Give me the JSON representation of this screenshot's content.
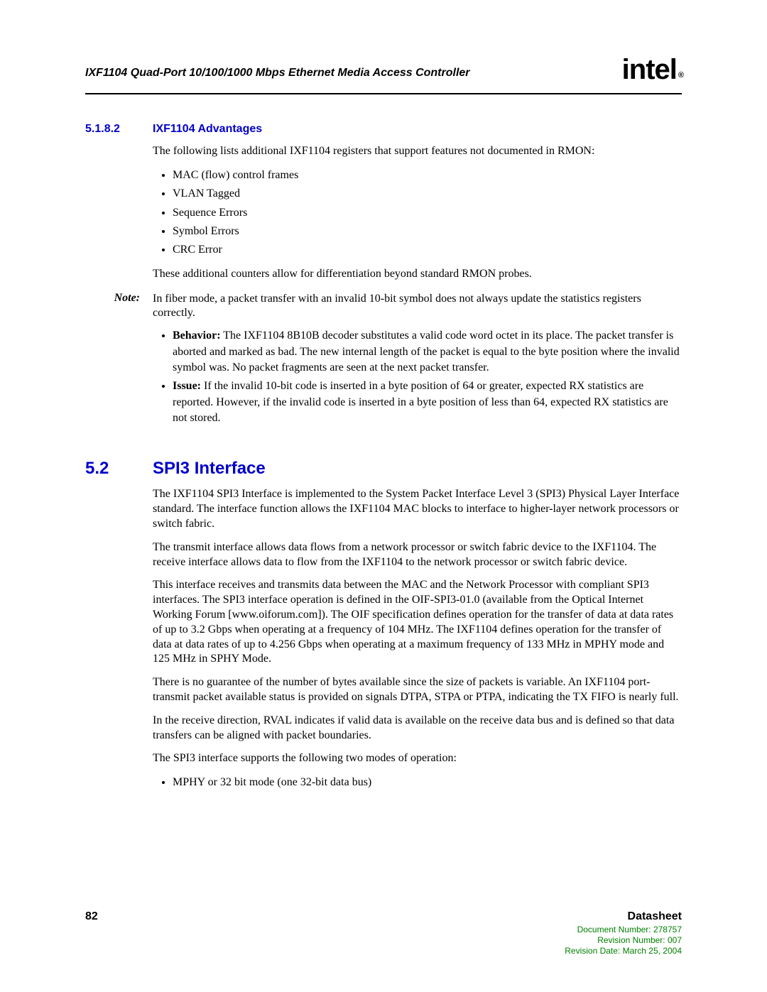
{
  "header": {
    "title": "IXF1104 Quad-Port 10/100/1000 Mbps Ethernet Media Access Controller",
    "logo_text": "intel",
    "logo_mark": "®"
  },
  "section1": {
    "number": "5.1.8.2",
    "title": "IXF1104 Advantages",
    "intro": "The following lists additional IXF1104 registers that support features not documented in RMON:",
    "bullets": [
      "MAC (flow) control frames",
      "VLAN Tagged",
      "Sequence Errors",
      "Symbol Errors",
      "CRC Error"
    ],
    "after_bullets": "These additional counters allow for differentiation beyond standard RMON probes.",
    "note_label": "Note:",
    "note_text": "In fiber mode, a packet transfer with an invalid 10-bit symbol does not always update the statistics registers correctly.",
    "note_bullets": [
      {
        "head": "Behavior:",
        "body": " The IXF1104 8B10B decoder substitutes a valid code word octet in its place. The packet transfer is aborted and marked as bad. The new internal length of the packet is equal to the byte position where the invalid symbol was. No packet fragments are seen at the next packet transfer."
      },
      {
        "head": "Issue:",
        "body": " If the invalid 10-bit code is inserted in a byte position of 64 or greater, expected RX statistics are reported. However, if the invalid code is inserted in a byte position of less than 64, expected RX statistics are not stored."
      }
    ]
  },
  "section2": {
    "number": "5.2",
    "title": "SPI3 Interface",
    "paras": [
      "The IXF1104 SPI3 Interface is implemented to the System Packet Interface Level 3 (SPI3) Physical Layer Interface standard. The interface function allows the IXF1104 MAC blocks to interface to higher-layer network processors or switch fabric.",
      "The transmit interface allows data flows from a network processor or switch fabric device to the IXF1104. The receive interface allows data to flow from the IXF1104 to the network processor or switch fabric device.",
      "This interface receives and transmits data between the MAC and the Network Processor with compliant SPI3 interfaces. The SPI3 interface operation is defined in the OIF-SPI3-01.0 (available from the Optical Internet Working Forum [www.oiforum.com]). The OIF specification defines operation for the transfer of data at data rates of up to 3.2 Gbps when operating at a frequency of 104 MHz. The IXF1104 defines operation for the transfer of data at data rates of up to 4.256 Gbps when operating at a maximum frequency of 133 MHz in MPHY mode and 125 MHz in SPHY Mode.",
      "There is no guarantee of the number of bytes available since the size of packets is variable. An IXF1104 port-transmit packet available status is provided on signals DTPA, STPA or PTPA, indicating the TX FIFO is nearly full.",
      "In the receive direction, RVAL indicates if valid data is available on the receive data bus and is defined so that data transfers can be aligned with packet boundaries.",
      "The SPI3 interface supports the following two modes of operation:"
    ],
    "bullets": [
      "MPHY or 32 bit mode (one 32-bit data bus)"
    ]
  },
  "footer": {
    "page_number": "82",
    "doc_type": "Datasheet",
    "meta": [
      "Document Number: 278757",
      "Revision Number: 007",
      "Revision Date: March 25, 2004"
    ]
  }
}
